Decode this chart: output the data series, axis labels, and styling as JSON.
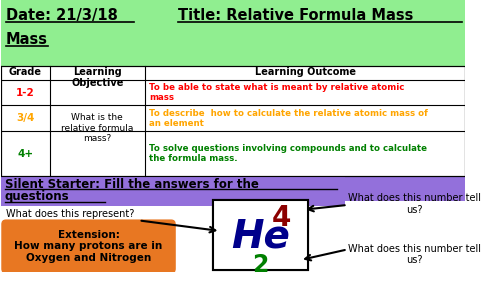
{
  "title_date": "Date: 21/3/18",
  "title_main": "Title: Relative Formula Mass",
  "header_bg": "#90EE90",
  "grades": [
    "1-2",
    "3/4",
    "4+"
  ],
  "grade_colors": [
    "#FF0000",
    "#FFA500",
    "#008000"
  ],
  "learning_objective": "What is the\nrelative formula\nmass?",
  "outcomes": [
    "To be able to state what is meant by relative atomic\nmass",
    "To describe  how to calculate the relative atomic mass of\nan element",
    "To solve questions involving compounds and to calculate\nthe formula mass."
  ],
  "outcome_colors": [
    "#FF0000",
    "#FFA500",
    "#008000"
  ],
  "silent_starter_line1": "Silent Starter: Fill the answers for the",
  "silent_starter_line2": "questions",
  "silent_starter_bg": "#9370DB",
  "he_symbol": "He",
  "he_mass": "4",
  "he_number": "2",
  "he_color": "#00008B",
  "he_mass_color": "#8B0000",
  "he_number_color": "#008000",
  "q1": "What does this represent?",
  "q2_top": "What does this number tell\nus?",
  "q3_bottom": "What does this number tell\nus?",
  "extension_text": "Extension:\nHow many protons are in\nOxygen and Nitrogen",
  "extension_bg": "#E87722",
  "bg_color": "#FFFFFF"
}
